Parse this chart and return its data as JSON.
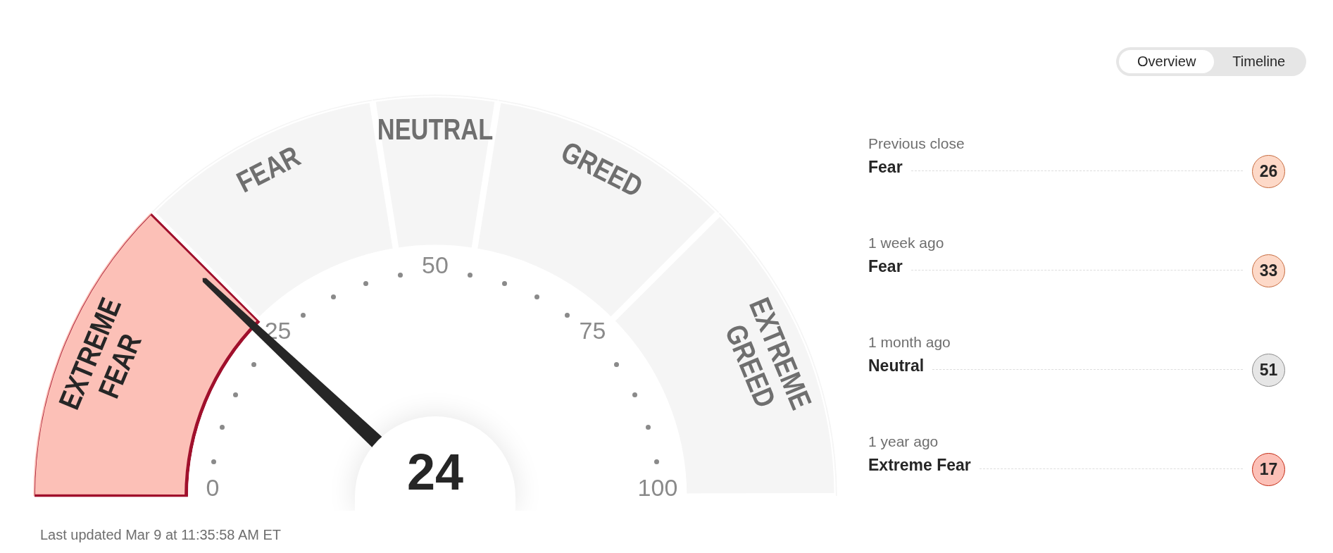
{
  "chart_data": [
    {
      "type": "donut",
      "categories": [
        "EXTREME FEAR",
        "FEAR",
        "NEUTRAL",
        "GREED",
        "EXTREME GREED"
      ],
      "values": [
        25,
        20,
        10,
        20,
        25
      ],
      "colors": [
        "#fcc0b7",
        "#f5f5f5",
        "#f5f5f5",
        "#f5f5f5",
        "#f5f5f5"
      ],
      "needle": "EXTREME FEAR",
      "annotations": [
        "24",
        "0",
        "25",
        "50",
        "75",
        "100",
        "Last updated Mar 9 at 11:35:58 AM ET"
      ]
    },
    {
      "type": "other",
      "categories": [
        "Previous close",
        "1 week ago",
        "1 month ago",
        "1 year ago"
      ],
      "values": [
        26,
        33,
        51,
        17
      ],
      "colors": [
        "#fdd9c8",
        "#fdd9c8",
        "#e6e6e6",
        "#fcc0b7"
      ],
      "data_labels": true,
      "annotations": [
        "Fear",
        "Fear",
        "Neutral",
        "Extreme Fear"
      ]
    },
    {
      "type": "other",
      "annotations": [
        "Overview",
        "Timeline"
      ]
    }
  ]
}
